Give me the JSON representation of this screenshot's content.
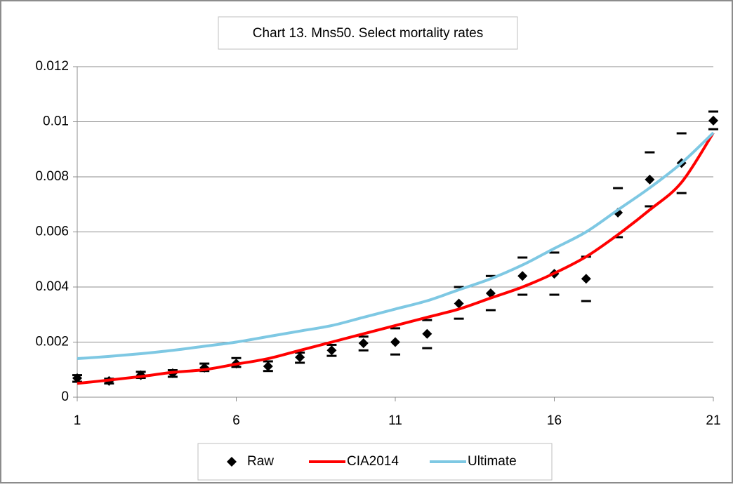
{
  "chart_data": {
    "type": "line",
    "title": "Chart 13. Mns50. Select mortality rates",
    "x": [
      1,
      2,
      3,
      4,
      5,
      6,
      7,
      8,
      9,
      10,
      11,
      12,
      13,
      14,
      15,
      16,
      17,
      18,
      19,
      20,
      21
    ],
    "xlim": [
      1,
      21
    ],
    "xticks": [
      1,
      6,
      11,
      16,
      21
    ],
    "ylim": [
      0,
      0.012
    ],
    "yticks": [
      0,
      0.002,
      0.004,
      0.006,
      0.008,
      0.01,
      0.012
    ],
    "grid": true,
    "legend": "bottom",
    "series": [
      {
        "name": "Raw",
        "color": "#000000",
        "marker": "diamond",
        "values": [
          0.00069,
          0.00059,
          0.0008,
          0.00087,
          0.00107,
          0.00122,
          0.00112,
          0.00145,
          0.0017,
          0.00196,
          0.002,
          0.0023,
          0.0034,
          0.00377,
          0.0044,
          0.00448,
          0.0043,
          0.0067,
          0.0079,
          0.0085,
          0.01004
        ],
        "lower": [
          0.00056,
          0.0005,
          0.0007,
          0.00074,
          0.00095,
          0.0011,
          0.00095,
          0.00125,
          0.0015,
          0.0017,
          0.00155,
          0.00178,
          0.00285,
          0.00316,
          0.00372,
          0.00372,
          0.00349,
          0.00581,
          0.00693,
          0.00741,
          0.00973
        ],
        "upper": [
          0.0008,
          0.00067,
          0.00092,
          0.00098,
          0.00122,
          0.00142,
          0.0013,
          0.00162,
          0.0019,
          0.0022,
          0.0025,
          0.0028,
          0.004,
          0.0044,
          0.00507,
          0.00525,
          0.0051,
          0.00759,
          0.00889,
          0.00958,
          0.01037
        ]
      },
      {
        "name": "CIA2014",
        "color": "#ff0000",
        "values": [
          0.0005,
          0.00062,
          0.00075,
          0.0009,
          0.001,
          0.0012,
          0.0014,
          0.0017,
          0.002,
          0.0023,
          0.0026,
          0.0029,
          0.0032,
          0.0036,
          0.004,
          0.0045,
          0.0051,
          0.0059,
          0.0068,
          0.0078,
          0.0096
        ]
      },
      {
        "name": "Ultimate",
        "color": "#7ec8e3",
        "values": [
          0.0014,
          0.00148,
          0.00158,
          0.0017,
          0.00185,
          0.002,
          0.0022,
          0.0024,
          0.0026,
          0.0029,
          0.0032,
          0.0035,
          0.0039,
          0.0043,
          0.0048,
          0.0054,
          0.006,
          0.0068,
          0.0076,
          0.0085,
          0.0096
        ]
      }
    ]
  }
}
